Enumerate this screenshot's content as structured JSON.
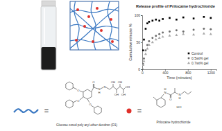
{
  "chart_data": {
    "type": "scatter",
    "title": "Release profile of Prilocaine hydrochloride",
    "x_label": "Time (minutes)",
    "y_label": "Cumulative release %",
    "x": [
      0,
      15,
      30,
      60,
      90,
      120,
      180,
      240,
      300,
      360,
      480,
      600,
      720,
      900,
      1080,
      1200
    ],
    "series": [
      {
        "name": "Control",
        "color": "#000000",
        "marker": "square",
        "values": [
          0,
          35,
          55,
          75,
          85,
          88,
          90,
          92,
          90,
          93,
          95,
          92,
          96,
          94,
          97,
          95
        ]
      },
      {
        "name": "0.5wt% gel",
        "color": "#6e6e6e",
        "marker": "circle",
        "values": [
          0,
          10,
          20,
          35,
          45,
          52,
          58,
          62,
          65,
          68,
          70,
          72,
          70,
          73,
          75,
          74
        ]
      },
      {
        "name": "0.7wt% gel",
        "color": "#a8a8a8",
        "marker": "triangle",
        "values": [
          0,
          8,
          15,
          28,
          38,
          45,
          50,
          55,
          58,
          60,
          62,
          63,
          65,
          64,
          66,
          65
        ]
      }
    ],
    "xlim": [
      0,
      1300
    ],
    "xticks": [
      0,
      400,
      800,
      1200
    ],
    "ylim": [
      0,
      100
    ],
    "yticks": [
      0,
      50,
      100
    ],
    "legend": "lower right"
  },
  "diagram": {
    "components": [
      {
        "symbol": "=",
        "caption": "Glucose cored poly aryl ether dendron (D1)",
        "atoms": [
          "O",
          "O",
          "O",
          "O",
          "N",
          "H",
          "N",
          "OH",
          "OH",
          "OH",
          "OH",
          "OH"
        ]
      },
      {
        "symbol": "=",
        "caption": "Prilocaine hydrochloride",
        "atoms": [
          "N",
          "H",
          "O",
          "N",
          "H",
          "HCl"
        ]
      }
    ]
  }
}
